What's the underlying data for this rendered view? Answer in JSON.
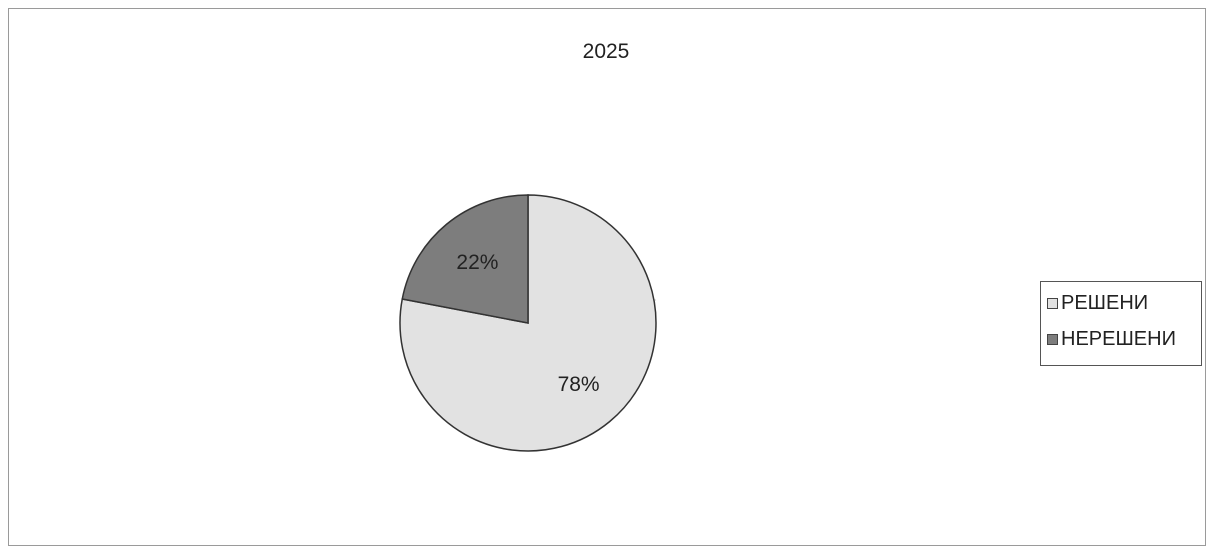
{
  "chart_data": {
    "type": "pie",
    "title": "2025",
    "categories": [
      "РЕШЕНИ",
      "НЕРЕШЕНИ"
    ],
    "values": [
      78,
      22
    ],
    "data_labels": [
      "78%",
      "22%"
    ],
    "colors": [
      "#e2e2e2",
      "#7d7d7d"
    ],
    "legend": "right"
  }
}
